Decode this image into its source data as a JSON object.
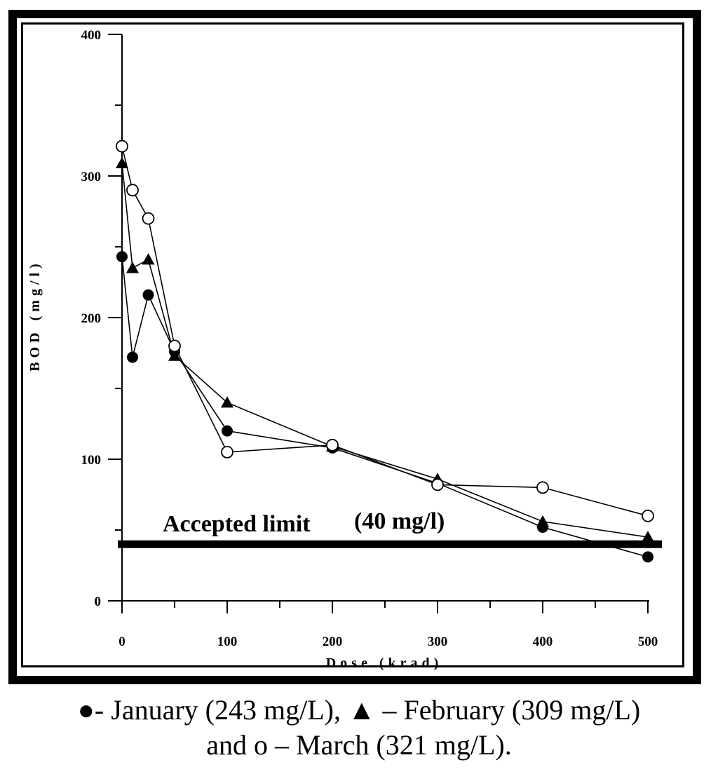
{
  "chart_data": {
    "type": "line",
    "title": "",
    "xlabel": "Dose (krad)",
    "ylabel": "BOD (mg/l)",
    "xlim": [
      0,
      500
    ],
    "ylim": [
      0,
      400
    ],
    "xticks": [
      0,
      100,
      200,
      300,
      400,
      500
    ],
    "yticks": [
      0,
      100,
      200,
      300,
      400
    ],
    "grid": false,
    "series": [
      {
        "marker": "filled-circle",
        "x": [
          0,
          10,
          25,
          50,
          100,
          200,
          300,
          400,
          500
        ],
        "y": [
          243,
          172,
          216,
          176,
          120,
          108,
          83,
          52,
          31
        ]
      },
      {
        "marker": "filled-triangle",
        "x": [
          0,
          10,
          25,
          50,
          100,
          200,
          300,
          400,
          500
        ],
        "y": [
          309,
          235,
          241,
          173,
          140,
          109,
          86,
          56,
          45
        ]
      },
      {
        "marker": "open-circle",
        "x": [
          0,
          10,
          25,
          50,
          100,
          200,
          300,
          400,
          500
        ],
        "y": [
          321,
          290,
          270,
          180,
          105,
          110,
          82,
          80,
          60
        ]
      }
    ],
    "reference_line": {
      "y": 40,
      "label_main": "Accepted limit",
      "label_value": "(40 mg/l)"
    }
  },
  "caption": {
    "line1": "●- January (243 mg/L), ▲ – February (309 mg/L)",
    "line2": "and o – March (321 mg/L)."
  }
}
